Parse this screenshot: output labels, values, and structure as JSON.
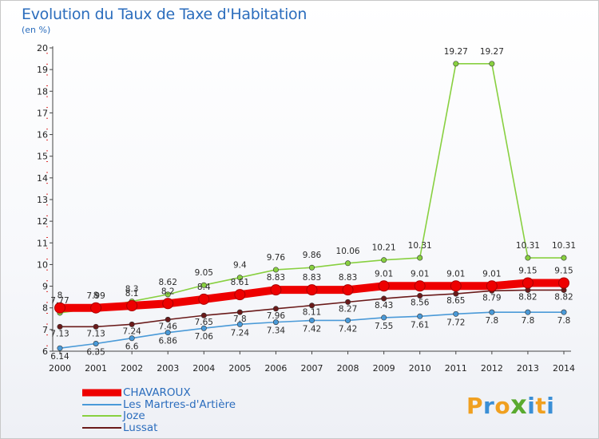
{
  "title": "Evolution du Taux de Taxe d'Habitation",
  "subtitle": "(en %)",
  "brand": {
    "text": "Proxiti",
    "colors": [
      "#f0a020",
      "#3a8fd6",
      "#f0a020",
      "#5aaa30",
      "#3a8fd6",
      "#f0a020",
      "#3a8fd6"
    ]
  },
  "chart_data": {
    "type": "line",
    "x": [
      2000,
      2001,
      2002,
      2003,
      2004,
      2005,
      2006,
      2007,
      2008,
      2009,
      2010,
      2011,
      2012,
      2013,
      2014
    ],
    "ylim": [
      6,
      20
    ],
    "yticks": [
      6,
      7,
      8,
      9,
      10,
      11,
      12,
      13,
      14,
      15,
      16,
      17,
      18,
      19,
      20
    ],
    "grid": false,
    "legend_position": "bottom-left",
    "series": [
      {
        "name": "CHAVAROUX",
        "color": "#ee0000",
        "values": [
          8,
          8,
          8.1,
          8.2,
          8.4,
          8.61,
          8.83,
          8.83,
          8.83,
          9.01,
          9.01,
          9.01,
          9.01,
          9.15,
          9.15
        ],
        "labels": [
          "8",
          "8",
          "8.1",
          "8.2",
          "8.4",
          "8.61",
          "8.83",
          "8.83",
          "8.83",
          "9.01",
          "9.01",
          "9.01",
          "9.01",
          "9.15",
          "9.15"
        ]
      },
      {
        "name": "Les Martres-d'Artière",
        "color": "#4a9ad8",
        "values": [
          6.14,
          6.35,
          6.6,
          6.86,
          7.06,
          7.24,
          7.34,
          7.42,
          7.42,
          7.55,
          7.61,
          7.72,
          7.8,
          7.8,
          7.8
        ],
        "labels": [
          "6.14",
          "6.35",
          "6.6",
          "6.86",
          "7.06",
          "7.24",
          "7.34",
          "7.42",
          "7.42",
          "7.55",
          "7.61",
          "7.72",
          "7.8",
          "7.8",
          "7.8"
        ]
      },
      {
        "name": "Joze",
        "color": "#88d040",
        "values": [
          7.77,
          7.99,
          8.3,
          8.62,
          9.05,
          9.4,
          9.76,
          9.86,
          10.06,
          10.21,
          10.31,
          19.27,
          19.27,
          10.31,
          10.31
        ],
        "labels": [
          "7.77",
          "7.99",
          "8.3",
          "8.62",
          "9.05",
          "9.4",
          "9.76",
          "9.86",
          "10.06",
          "10.21",
          "10.31",
          "19.27",
          "19.27",
          "10.31",
          "10.31"
        ]
      },
      {
        "name": "Lussat",
        "color": "#6a1a1a",
        "values": [
          7.13,
          7.13,
          7.24,
          7.46,
          7.65,
          7.8,
          7.96,
          8.11,
          8.27,
          8.43,
          8.56,
          8.65,
          8.79,
          8.82,
          8.82
        ],
        "labels": [
          "7.13",
          "7.13",
          "7.24",
          "7.46",
          "7.65",
          "7.8",
          "7.96",
          "8.11",
          "8.27",
          "8.43",
          "8.56",
          "8.65",
          "8.79",
          "8.82",
          "8.82"
        ]
      }
    ]
  }
}
